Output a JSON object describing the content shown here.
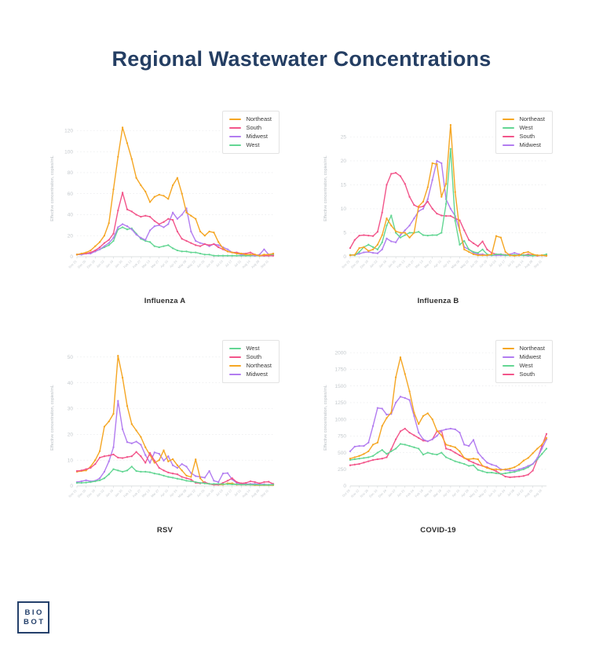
{
  "page": {
    "title": "Regional Wastewater Concentrations",
    "title_color": "#243E63"
  },
  "logo": {
    "line1": "BIO",
    "line2": "BOT",
    "color": "#24406B"
  },
  "style": {
    "grid_color": "#e6e8ea",
    "axis_line_color": "#d2d6d9",
    "tick_text_color": "#c4c9cd",
    "ylabel_text_color": "#b9bfc4",
    "caption_color": "#2d2d2d"
  },
  "chart_data": [
    {
      "type": "line",
      "id": "influenza-a",
      "title": "Influenza A",
      "ylabel": "Effective concentration, copies/mL",
      "ylim": [
        0,
        130
      ],
      "yticks": [
        0,
        20,
        40,
        60,
        80,
        100,
        120
      ],
      "grid": true,
      "legend_position": "top-right",
      "x_tick_labels": [
        "Nov 21",
        "Dec 05",
        "Dec 19",
        "Jan 02",
        "Jan 16",
        "Jan 30",
        "Feb 13",
        "Feb 27",
        "Mar 13",
        "Mar 27",
        "Apr 10",
        "Apr 24",
        "May 08",
        "May 22",
        "Jun 05",
        "Jun 19",
        "Jul 03",
        "Jul 17",
        "Jul 31",
        "Aug 14",
        "Aug 28",
        "Sep 11"
      ],
      "series": [
        {
          "name": "Northeast",
          "color": "#F5A623",
          "values": [
            2,
            3,
            4,
            6,
            10,
            14,
            20,
            32,
            64,
            95,
            123,
            108,
            93,
            75,
            68,
            62,
            52,
            57,
            59,
            58,
            55,
            68,
            75,
            60,
            42,
            39,
            36,
            24,
            20,
            24,
            23,
            14,
            8,
            5,
            4,
            3,
            3,
            2,
            2,
            2,
            1,
            2,
            2,
            3
          ]
        },
        {
          "name": "South",
          "color": "#F2558A",
          "values": [
            2,
            3,
            3,
            4,
            6,
            9,
            13,
            16,
            22,
            44,
            61,
            45,
            43,
            40,
            38,
            39,
            38,
            34,
            31,
            33,
            36,
            35,
            24,
            17,
            15,
            13,
            11,
            10,
            12,
            11,
            12,
            9,
            7,
            5,
            4,
            4,
            3,
            3,
            4,
            2,
            1,
            1,
            1,
            1
          ]
        },
        {
          "name": "Midwest",
          "color": "#B27CF0",
          "values": [
            2,
            2,
            3,
            3,
            5,
            7,
            10,
            13,
            18,
            28,
            31,
            29,
            26,
            21,
            18,
            16,
            25,
            29,
            30,
            28,
            31,
            42,
            36,
            40,
            46,
            24,
            15,
            13,
            12,
            10,
            12,
            11,
            9,
            7,
            4,
            3,
            2,
            2,
            2,
            1,
            2,
            7,
            2,
            3
          ]
        },
        {
          "name": "West",
          "color": "#63D693",
          "values": [
            2,
            2,
            3,
            4,
            5,
            7,
            9,
            11,
            15,
            26,
            28,
            26,
            27,
            22,
            17,
            15,
            14,
            10,
            9,
            10,
            11,
            8,
            6,
            5,
            5,
            4,
            4,
            3,
            2,
            2,
            1,
            1,
            1,
            1,
            1,
            1,
            1,
            1,
            1,
            1,
            1,
            1,
            1,
            2
          ]
        }
      ]
    },
    {
      "type": "line",
      "id": "influenza-b",
      "title": "Influenza B",
      "ylabel": "Effective concentration, copies/mL",
      "ylim": [
        0,
        28.5
      ],
      "yticks": [
        0,
        5,
        10,
        15,
        20,
        25
      ],
      "grid": true,
      "legend_position": "top-right",
      "x_tick_labels": [
        "Nov 21",
        "Dec 05",
        "Dec 19",
        "Jan 02",
        "Jan 16",
        "Jan 30",
        "Feb 13",
        "Feb 27",
        "Mar 13",
        "Mar 27",
        "Apr 10",
        "Apr 24",
        "May 08",
        "May 22",
        "Jun 05",
        "Jun 19",
        "Jul 03",
        "Jul 17",
        "Jul 31",
        "Aug 14",
        "Aug 28",
        "Sep 11"
      ],
      "series": [
        {
          "name": "Northeast",
          "color": "#F5A623",
          "values": [
            0.3,
            0.4,
            1.8,
            2.0,
            1.2,
            1.5,
            2.5,
            4.5,
            8.0,
            6.5,
            5.3,
            5.0,
            5.0,
            4.0,
            5.0,
            10.5,
            11.5,
            14.5,
            19.5,
            19.3,
            12.5,
            15.2,
            27.5,
            13.5,
            5.5,
            1.5,
            1.0,
            0.5,
            0.3,
            0.3,
            0.3,
            0.5,
            4.3,
            4.0,
            1.0,
            0.3,
            0.2,
            0.3,
            0.8,
            1.0,
            0.5,
            0.3,
            0.3,
            0.2
          ]
        },
        {
          "name": "West",
          "color": "#63D693",
          "values": [
            0.4,
            0.3,
            1.0,
            2.0,
            2.5,
            2.0,
            1.5,
            3.0,
            6.5,
            8.6,
            5.0,
            4.0,
            4.5,
            5.0,
            5.0,
            5.2,
            4.5,
            4.4,
            4.5,
            4.5,
            5.0,
            11.0,
            22.5,
            7.5,
            2.5,
            3.3,
            1.5,
            1.0,
            0.8,
            1.5,
            0.5,
            0.3,
            0.5,
            0.5,
            0.3,
            0.3,
            0.4,
            0.3,
            0.3,
            0.3,
            0.2,
            0.3,
            0.3,
            0.5
          ]
        },
        {
          "name": "South",
          "color": "#F2558A",
          "values": [
            1.8,
            3.5,
            4.4,
            4.5,
            4.4,
            4.3,
            5.2,
            9.2,
            15.0,
            17.3,
            17.5,
            16.8,
            15.2,
            12.5,
            10.8,
            10.3,
            10.5,
            11.5,
            10.0,
            9.0,
            8.6,
            8.5,
            8.5,
            8.0,
            7.6,
            5.5,
            3.5,
            2.8,
            2.2,
            3.2,
            1.5,
            0.8,
            0.5,
            0.5,
            0.4,
            0.3,
            0.3,
            0.3,
            0.3,
            0.5,
            0.3,
            0.2,
            0.3,
            0.2
          ]
        },
        {
          "name": "Midwest",
          "color": "#B27CF0",
          "values": [
            0.3,
            0.4,
            0.6,
            0.9,
            1.0,
            0.8,
            0.7,
            1.5,
            3.8,
            3.2,
            3.0,
            4.5,
            5.5,
            6.5,
            8.0,
            9.5,
            10.0,
            12.0,
            16.0,
            20.0,
            19.5,
            12.0,
            10.0,
            8.5,
            5.5,
            2.0,
            1.5,
            0.8,
            0.5,
            0.5,
            0.3,
            0.3,
            0.3,
            0.3,
            0.3,
            0.5,
            0.8,
            0.5,
            0.3,
            0.2,
            0.3,
            0.3,
            0.3,
            0.3
          ]
        }
      ]
    },
    {
      "type": "line",
      "id": "rsv",
      "title": "RSV",
      "ylabel": "Effective concentration, copies/mL",
      "ylim": [
        0,
        53
      ],
      "yticks": [
        0,
        10,
        20,
        30,
        40,
        50
      ],
      "grid": true,
      "legend_position": "top-right",
      "x_tick_labels": [
        "Nov 21",
        "Dec 05",
        "Dec 19",
        "Jan 02",
        "Jan 16",
        "Jan 30",
        "Feb 13",
        "Feb 27",
        "Mar 13",
        "Mar 27",
        "Apr 10",
        "Apr 24",
        "May 08",
        "May 22",
        "Jun 05",
        "Jun 19",
        "Jul 03",
        "Jul 17",
        "Jul 31",
        "Aug 14",
        "Aug 28",
        "Sep 11"
      ],
      "series": [
        {
          "name": "West",
          "color": "#63D693",
          "values": [
            1.2,
            1.2,
            1.3,
            1.5,
            1.8,
            2.2,
            3.0,
            4.5,
            6.5,
            6.0,
            5.5,
            6.0,
            7.5,
            5.8,
            5.5,
            5.5,
            5.3,
            4.8,
            4.5,
            4.0,
            3.5,
            3.2,
            2.8,
            2.5,
            2.0,
            1.8,
            1.5,
            1.2,
            1.0,
            0.8,
            0.8,
            0.8,
            0.7,
            0.7,
            0.6,
            0.6,
            0.5,
            0.5,
            0.5,
            0.5,
            0.4,
            0.4,
            0.4,
            0.5
          ]
        },
        {
          "name": "South",
          "color": "#F2558A",
          "values": [
            5.8,
            6.0,
            6.5,
            7.0,
            8.5,
            11.0,
            11.5,
            11.8,
            12.2,
            11.0,
            10.8,
            11.2,
            11.5,
            13.2,
            11.5,
            9.0,
            12.8,
            9.8,
            7.0,
            6.0,
            5.2,
            4.8,
            4.5,
            3.5,
            3.0,
            2.5,
            1.2,
            1.0,
            1.5,
            0.8,
            0.5,
            0.5,
            1.2,
            2.0,
            3.0,
            1.5,
            1.0,
            1.2,
            1.8,
            1.5,
            1.0,
            1.5,
            1.6,
            0.8
          ]
        },
        {
          "name": "Northeast",
          "color": "#F5A623",
          "values": [
            5.5,
            5.8,
            6.0,
            7.5,
            10.0,
            13.5,
            23.0,
            25.0,
            28.0,
            50.5,
            42.0,
            31.0,
            24.0,
            21.5,
            19.0,
            15.0,
            12.0,
            9.0,
            10.0,
            13.8,
            9.5,
            10.4,
            8.0,
            6.0,
            4.0,
            3.5,
            10.3,
            3.0,
            1.0,
            0.8,
            0.5,
            0.5,
            0.5,
            1.0,
            1.0,
            0.5,
            0.5,
            0.5,
            0.5,
            0.3,
            0.3,
            0.3,
            0.3,
            0.3
          ]
        },
        {
          "name": "Midwest",
          "color": "#B27CF0",
          "values": [
            1.5,
            1.8,
            2.2,
            1.8,
            2.0,
            3.0,
            5.5,
            9.5,
            15.0,
            33.0,
            22.0,
            17.0,
            16.5,
            17.2,
            16.0,
            12.0,
            9.0,
            13.0,
            12.5,
            9.8,
            11.5,
            8.0,
            7.0,
            8.5,
            7.5,
            5.0,
            3.8,
            3.5,
            3.2,
            5.8,
            2.0,
            1.5,
            4.8,
            5.0,
            2.5,
            1.2,
            0.8,
            0.8,
            0.8,
            0.8,
            0.6,
            0.6,
            0.5,
            0.7
          ]
        }
      ]
    },
    {
      "type": "line",
      "id": "covid-19",
      "title": "COVID-19",
      "ylabel": "Effective concentration, copies/mL",
      "ylim": [
        0,
        2050
      ],
      "yticks": [
        0,
        250,
        500,
        750,
        1000,
        1250,
        1500,
        1750,
        2000
      ],
      "grid": true,
      "legend_position": "top-right",
      "x_tick_labels": [
        "Oct 29",
        "Nov 12",
        "Nov 26",
        "Dec 10",
        "Dec 24",
        "Jan 07",
        "Jan 21",
        "Feb 04",
        "Feb 18",
        "Mar 04",
        "Mar 18",
        "Apr 01",
        "Apr 15",
        "Apr 29",
        "May 13",
        "May 27",
        "Jun 10",
        "Jun 24",
        "Jul 08",
        "Jul 22",
        "Aug 05",
        "Aug 19"
      ],
      "series": [
        {
          "name": "Northeast",
          "color": "#F5A623",
          "values": [
            410,
            430,
            450,
            480,
            520,
            620,
            650,
            900,
            1020,
            1100,
            1630,
            1930,
            1680,
            1420,
            1100,
            930,
            1050,
            1090,
            1000,
            830,
            760,
            620,
            600,
            580,
            520,
            420,
            400,
            410,
            400,
            300,
            270,
            250,
            250,
            240,
            250,
            260,
            280,
            320,
            380,
            420,
            490,
            560,
            620,
            720
          ]
        },
        {
          "name": "Midwest",
          "color": "#B27CF0",
          "values": [
            520,
            590,
            600,
            600,
            650,
            900,
            1170,
            1160,
            1070,
            1080,
            1250,
            1340,
            1320,
            1290,
            1050,
            800,
            700,
            670,
            700,
            750,
            830,
            850,
            860,
            850,
            800,
            620,
            600,
            690,
            500,
            420,
            350,
            320,
            300,
            250,
            240,
            230,
            230,
            250,
            270,
            300,
            330,
            420,
            560,
            700
          ]
        },
        {
          "name": "West",
          "color": "#63D693",
          "values": [
            390,
            400,
            410,
            420,
            430,
            450,
            500,
            540,
            480,
            520,
            560,
            630,
            620,
            600,
            580,
            560,
            470,
            500,
            480,
            470,
            500,
            430,
            400,
            370,
            350,
            330,
            300,
            310,
            240,
            220,
            200,
            200,
            190,
            180,
            190,
            200,
            210,
            230,
            250,
            280,
            330,
            400,
            480,
            560
          ]
        },
        {
          "name": "South",
          "color": "#F2558A",
          "values": [
            310,
            320,
            330,
            350,
            370,
            390,
            400,
            410,
            430,
            550,
            700,
            820,
            860,
            800,
            760,
            720,
            680,
            670,
            700,
            820,
            830,
            560,
            540,
            500,
            460,
            420,
            380,
            350,
            320,
            300,
            280,
            250,
            220,
            180,
            140,
            130,
            135,
            140,
            150,
            170,
            230,
            400,
            600,
            780
          ]
        }
      ]
    }
  ]
}
